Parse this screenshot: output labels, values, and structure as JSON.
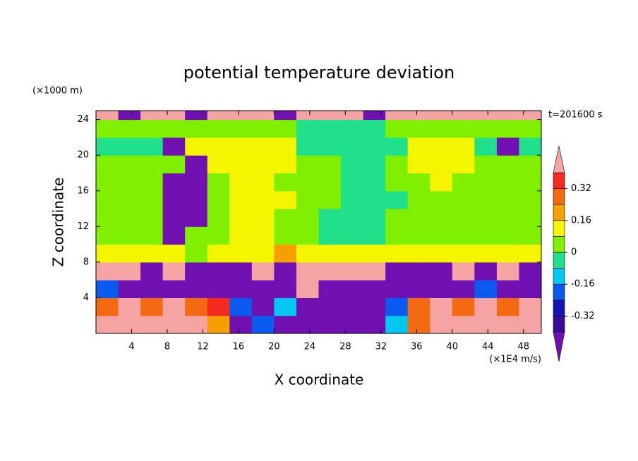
{
  "chart_data": {
    "type": "contour",
    "title": "potential temperature deviation",
    "y_units": "(×1000 m)",
    "x_units": "(×1E4 m/s)",
    "time_label": "t=201600 s",
    "x_label": "X coordinate",
    "y_label": "Z coordinate",
    "xlim": [
      0,
      50
    ],
    "ylim": [
      0,
      25
    ],
    "xticks": [
      4,
      8,
      12,
      16,
      20,
      24,
      28,
      32,
      36,
      40,
      44,
      48
    ],
    "yticks": [
      4,
      8,
      12,
      16,
      20,
      24
    ],
    "x_edges": [
      0,
      2.5,
      5,
      7.5,
      10,
      12.5,
      15,
      17.5,
      20,
      22.5,
      25,
      27.5,
      30,
      32.5,
      35,
      37.5,
      40,
      42.5,
      45,
      47.5,
      50
    ],
    "y_edges": [
      0,
      2,
      4,
      6,
      8,
      10,
      12,
      14,
      16,
      18,
      20,
      22,
      24,
      25
    ],
    "levels": [
      -0.4,
      -0.32,
      -0.24,
      -0.16,
      -0.08,
      0,
      0.08,
      0.16,
      0.24,
      0.32,
      0.4
    ],
    "colors": [
      "#7010b0",
      "#3a0a9a",
      "#1414b4",
      "#0a5af0",
      "#00c8f0",
      "#20e08c",
      "#80f000",
      "#f5f500",
      "#f5a000",
      "#f56a10",
      "#f52a1e",
      "#f5a3a3"
    ],
    "colorbar_ticks": [
      -0.32,
      -0.16,
      0,
      0.16,
      0.32
    ],
    "z": [
      [
        0.45,
        0.45,
        0.45,
        0.45,
        0.45,
        0.2,
        -0.45,
        -0.2,
        -0.45,
        -0.45,
        -0.45,
        -0.45,
        -0.45,
        -0.12,
        0.28,
        0.45,
        0.45,
        0.45,
        0.45,
        0.45
      ],
      [
        0.28,
        0.45,
        0.28,
        0.45,
        0.28,
        0.36,
        -0.2,
        -0.45,
        -0.12,
        -0.45,
        -0.45,
        -0.45,
        -0.45,
        -0.2,
        0.28,
        0.45,
        0.28,
        0.45,
        0.28,
        0.45
      ],
      [
        -0.2,
        -0.45,
        -0.45,
        -0.45,
        -0.45,
        -0.45,
        -0.45,
        -0.45,
        -0.45,
        0.45,
        -0.45,
        -0.45,
        -0.45,
        -0.45,
        -0.45,
        -0.45,
        -0.45,
        -0.2,
        -0.45,
        -0.45
      ],
      [
        0.45,
        0.45,
        -0.45,
        0.45,
        -0.45,
        -0.45,
        -0.45,
        0.45,
        -0.45,
        0.45,
        0.45,
        0.45,
        0.45,
        -0.45,
        -0.45,
        -0.45,
        0.45,
        -0.45,
        0.45,
        -0.45
      ],
      [
        0.12,
        0.12,
        0.12,
        0.12,
        0.04,
        0.12,
        0.12,
        0.12,
        0.2,
        0.12,
        0.12,
        0.12,
        0.12,
        0.12,
        0.12,
        0.12,
        0.12,
        0.12,
        0.12,
        0.12
      ],
      [
        0.04,
        0.04,
        0.04,
        -0.45,
        0.04,
        0.04,
        0.12,
        0.12,
        0.04,
        0.04,
        -0.04,
        -0.04,
        -0.04,
        0.04,
        0.04,
        0.04,
        0.04,
        0.04,
        0.04,
        0.04
      ],
      [
        0.04,
        0.04,
        0.04,
        -0.45,
        -0.45,
        0.04,
        0.12,
        0.12,
        0.04,
        0.04,
        -0.04,
        -0.04,
        -0.04,
        0.04,
        0.04,
        0.04,
        0.04,
        0.04,
        0.04,
        0.04
      ],
      [
        0.04,
        0.04,
        0.04,
        -0.45,
        -0.45,
        0.04,
        0.12,
        0.12,
        0.12,
        0.04,
        0.04,
        -0.04,
        -0.04,
        -0.04,
        0.04,
        0.04,
        0.04,
        0.04,
        0.04,
        0.04
      ],
      [
        0.04,
        0.04,
        0.04,
        -0.45,
        -0.45,
        0.04,
        0.12,
        0.12,
        0.04,
        0.04,
        0.04,
        -0.04,
        -0.04,
        0.04,
        0.04,
        0.12,
        0.04,
        0.04,
        0.04,
        0.04
      ],
      [
        0.04,
        0.04,
        0.04,
        0.04,
        -0.45,
        0.12,
        0.12,
        0.12,
        0.12,
        0.04,
        0.04,
        -0.04,
        -0.04,
        0.04,
        0.12,
        0.12,
        0.12,
        0.04,
        0.04,
        0.04
      ],
      [
        -0.04,
        -0.04,
        -0.04,
        -0.45,
        0.12,
        0.12,
        0.12,
        0.12,
        0.12,
        -0.04,
        -0.04,
        -0.04,
        -0.04,
        -0.04,
        0.12,
        0.12,
        0.12,
        -0.04,
        -0.45,
        -0.04
      ],
      [
        0.04,
        0.04,
        0.04,
        0.04,
        0.04,
        0.04,
        0.04,
        0.04,
        0.04,
        -0.04,
        -0.04,
        -0.04,
        -0.04,
        0.04,
        0.04,
        0.04,
        0.04,
        0.04,
        0.04,
        0.04
      ],
      [
        0.45,
        -0.45,
        0.45,
        0.45,
        -0.45,
        0.45,
        0.45,
        0.45,
        -0.45,
        0.45,
        0.45,
        0.45,
        -0.45,
        0.45,
        0.45,
        0.45,
        0.45,
        0.45,
        0.45,
        0.45
      ]
    ]
  }
}
